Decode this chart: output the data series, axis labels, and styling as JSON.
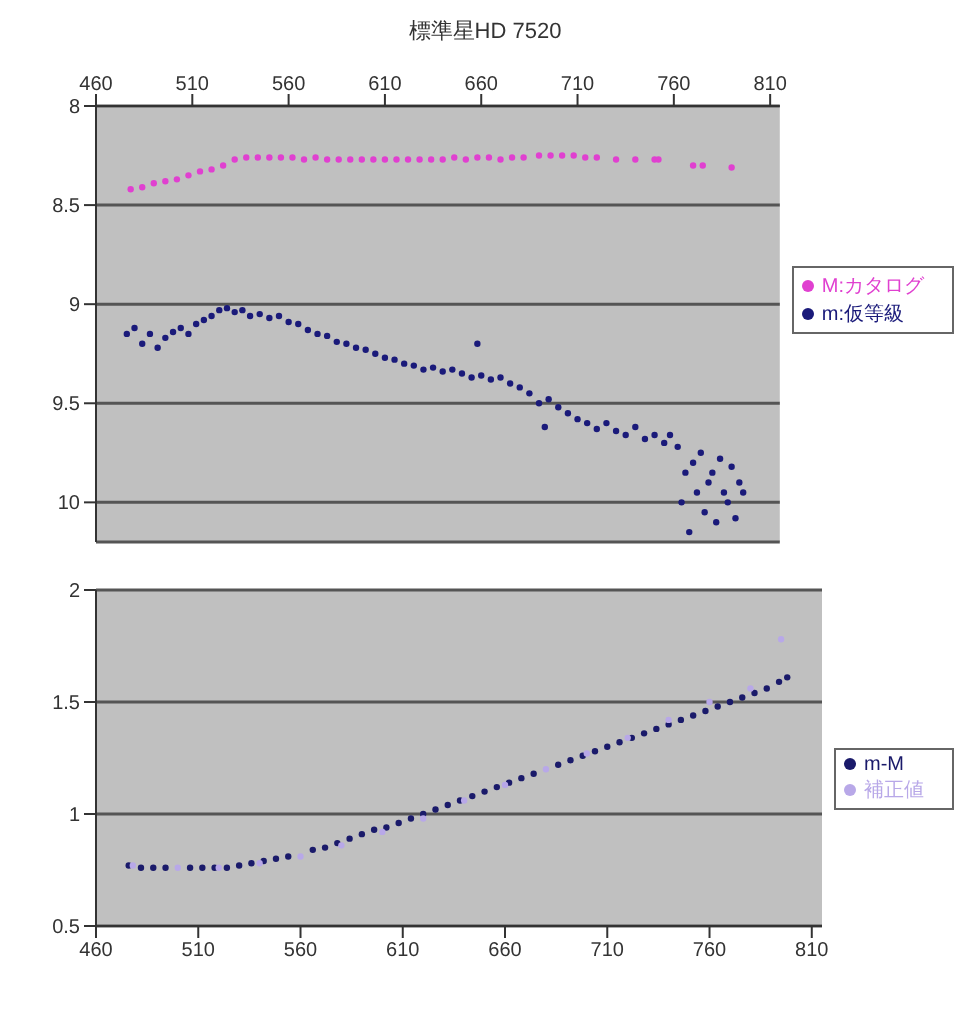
{
  "chart_data": [
    {
      "type": "scatter",
      "title": "標準星HD 7520",
      "xlim": [
        460,
        815
      ],
      "xticks": [
        460,
        510,
        560,
        610,
        660,
        710,
        760,
        810
      ],
      "ylim": [
        10.2,
        8
      ],
      "yticks": [
        8,
        8.5,
        9,
        9.5,
        10
      ],
      "grid": "y",
      "legend": "right",
      "marker": "circle",
      "series": [
        {
          "name": "m:仮等級",
          "color": "#1a1a7a",
          "x": [
            476,
            480,
            484,
            488,
            492,
            496,
            500,
            504,
            508,
            512,
            516,
            520,
            524,
            528,
            532,
            536,
            540,
            545,
            550,
            555,
            560,
            565,
            570,
            575,
            580,
            585,
            590,
            595,
            600,
            605,
            610,
            615,
            620,
            625,
            630,
            635,
            640,
            645,
            650,
            655,
            658,
            660,
            665,
            670,
            675,
            680,
            685,
            690,
            693,
            695,
            700,
            705,
            710,
            715,
            720,
            725,
            730,
            735,
            740,
            745,
            750,
            755,
            758,
            762,
            764,
            766,
            768,
            770,
            772,
            774,
            776,
            778,
            780,
            782,
            784,
            786,
            788,
            790,
            792,
            794,
            796
          ],
          "values": [
            9.15,
            9.12,
            9.2,
            9.15,
            9.22,
            9.17,
            9.14,
            9.12,
            9.15,
            9.1,
            9.08,
            9.06,
            9.03,
            9.02,
            9.04,
            9.03,
            9.06,
            9.05,
            9.07,
            9.06,
            9.09,
            9.1,
            9.13,
            9.15,
            9.16,
            9.19,
            9.2,
            9.22,
            9.23,
            9.25,
            9.27,
            9.28,
            9.3,
            9.31,
            9.33,
            9.32,
            9.34,
            9.33,
            9.35,
            9.37,
            9.2,
            9.36,
            9.38,
            9.37,
            9.4,
            9.42,
            9.45,
            9.5,
            9.62,
            9.48,
            9.52,
            9.55,
            9.58,
            9.6,
            9.63,
            9.6,
            9.64,
            9.66,
            9.62,
            9.68,
            9.66,
            9.7,
            9.66,
            9.72,
            10.0,
            9.85,
            10.15,
            9.8,
            9.95,
            9.75,
            10.05,
            9.9,
            9.85,
            10.1,
            9.78,
            9.95,
            10.0,
            9.82,
            10.08,
            9.9,
            9.95
          ]
        },
        {
          "name": "M:カタログ",
          "color": "#e040d0",
          "x": [
            478,
            484,
            490,
            496,
            502,
            508,
            514,
            520,
            526,
            532,
            538,
            544,
            550,
            556,
            562,
            568,
            574,
            580,
            586,
            592,
            598,
            604,
            610,
            616,
            622,
            628,
            634,
            640,
            646,
            652,
            658,
            664,
            670,
            676,
            682,
            690,
            696,
            702,
            708,
            714,
            720,
            730,
            740,
            750,
            752,
            770,
            775,
            790
          ],
          "values": [
            8.42,
            8.41,
            8.39,
            8.38,
            8.37,
            8.35,
            8.33,
            8.32,
            8.3,
            8.27,
            8.26,
            8.26,
            8.26,
            8.26,
            8.26,
            8.27,
            8.26,
            8.27,
            8.27,
            8.27,
            8.27,
            8.27,
            8.27,
            8.27,
            8.27,
            8.27,
            8.27,
            8.27,
            8.26,
            8.27,
            8.26,
            8.26,
            8.27,
            8.26,
            8.26,
            8.25,
            8.25,
            8.25,
            8.25,
            8.26,
            8.26,
            8.27,
            8.27,
            8.27,
            8.27,
            8.3,
            8.3,
            8.31
          ]
        }
      ]
    },
    {
      "type": "scatter",
      "xlim": [
        460,
        815
      ],
      "xticks": [
        460,
        510,
        560,
        610,
        660,
        710,
        760,
        810
      ],
      "ylim": [
        0.5,
        2
      ],
      "yticks": [
        0.5,
        1,
        1.5,
        2
      ],
      "grid": "y",
      "legend": "right",
      "marker": "circle",
      "series": [
        {
          "name": "補正値",
          "color": "#b8a8e8",
          "x": [
            478,
            500,
            520,
            540,
            560,
            580,
            600,
            620,
            640,
            660,
            680,
            700,
            720,
            740,
            760,
            780,
            795
          ],
          "values": [
            0.77,
            0.76,
            0.76,
            0.78,
            0.81,
            0.86,
            0.92,
            0.98,
            1.06,
            1.13,
            1.2,
            1.27,
            1.34,
            1.42,
            1.5,
            1.56,
            1.78
          ]
        },
        {
          "name": "m-M",
          "color": "#1a1a6a",
          "x": [
            476,
            482,
            488,
            494,
            500,
            506,
            512,
            518,
            524,
            530,
            536,
            542,
            548,
            554,
            560,
            566,
            572,
            578,
            584,
            590,
            596,
            602,
            608,
            614,
            620,
            626,
            632,
            638,
            644,
            650,
            656,
            662,
            668,
            674,
            680,
            686,
            692,
            698,
            704,
            710,
            716,
            722,
            728,
            734,
            740,
            746,
            752,
            758,
            764,
            770,
            776,
            782,
            788,
            794,
            798
          ],
          "values": [
            0.77,
            0.76,
            0.76,
            0.76,
            null,
            0.76,
            0.76,
            0.76,
            0.76,
            0.77,
            0.78,
            0.79,
            0.8,
            0.81,
            null,
            0.84,
            0.85,
            0.87,
            0.89,
            0.91,
            0.93,
            0.94,
            0.96,
            0.98,
            1.0,
            1.02,
            1.04,
            1.06,
            1.08,
            1.1,
            1.12,
            1.14,
            1.16,
            1.18,
            null,
            1.22,
            1.24,
            1.26,
            1.28,
            1.3,
            1.32,
            1.34,
            1.36,
            1.38,
            1.4,
            1.42,
            1.44,
            1.46,
            1.48,
            1.5,
            1.52,
            1.54,
            1.56,
            1.59,
            1.61
          ]
        }
      ]
    }
  ]
}
